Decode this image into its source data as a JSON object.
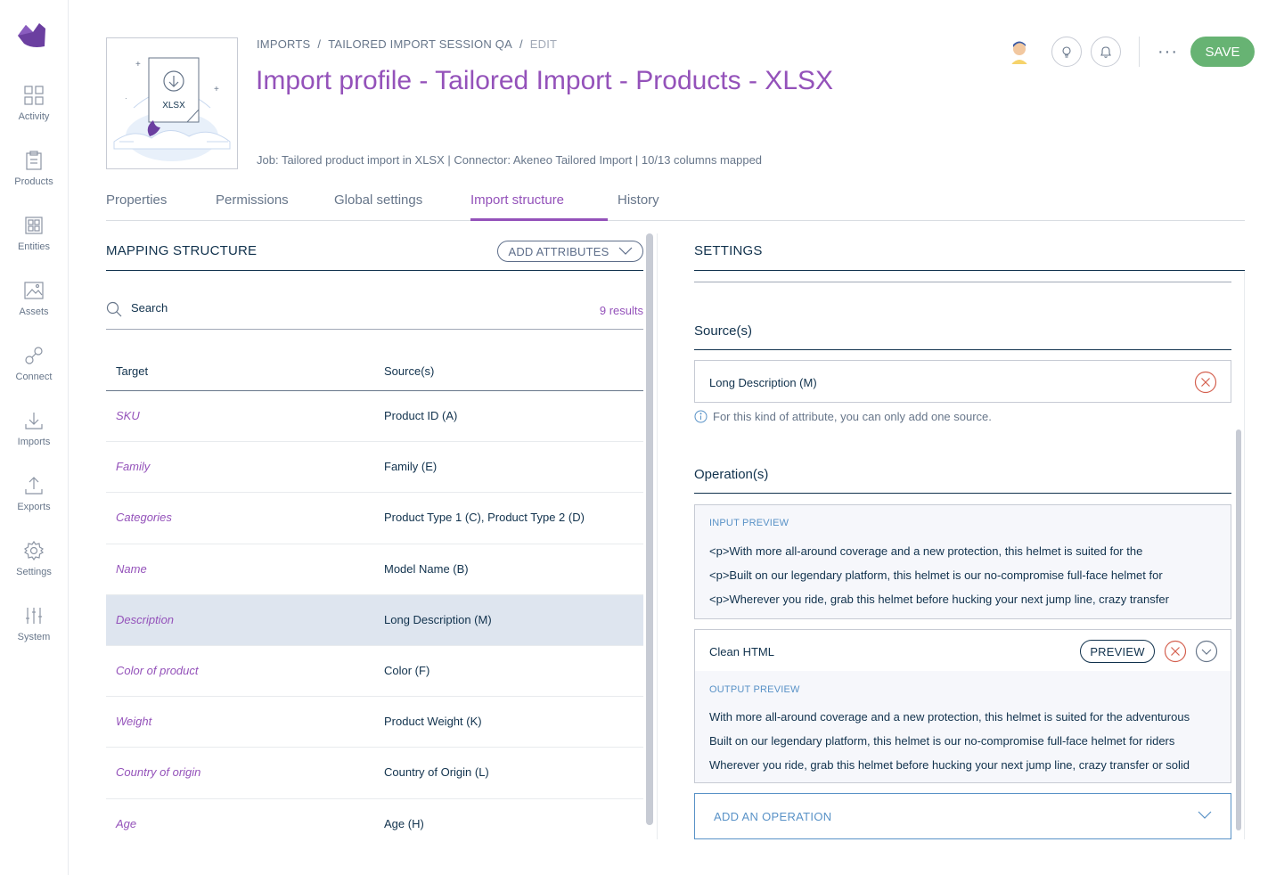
{
  "sidebar": {
    "items": [
      {
        "label": "Activity",
        "icon": "activity-icon"
      },
      {
        "label": "Products",
        "icon": "products-icon"
      },
      {
        "label": "Entities",
        "icon": "entities-icon"
      },
      {
        "label": "Assets",
        "icon": "assets-icon"
      },
      {
        "label": "Connect",
        "icon": "connect-icon"
      },
      {
        "label": "Imports",
        "icon": "imports-icon"
      },
      {
        "label": "Exports",
        "icon": "exports-icon"
      },
      {
        "label": "Settings",
        "icon": "settings-icon"
      },
      {
        "label": "System",
        "icon": "system-icon"
      }
    ]
  },
  "header": {
    "thumbnail_label": "XLSX",
    "breadcrumb": [
      "IMPORTS",
      "TAILORED IMPORT SESSION QA",
      "EDIT"
    ],
    "title": "Import profile - Tailored Import - Products - XLSX",
    "subtitle": "Job: Tailored product import in XLSX | Connector: Akeneo Tailored Import | 10/13 columns mapped",
    "more_label": "···",
    "save_label": "SAVE"
  },
  "tabs": [
    {
      "label": "Properties",
      "active": false
    },
    {
      "label": "Permissions",
      "active": false
    },
    {
      "label": "Global settings",
      "active": false
    },
    {
      "label": "Import structure",
      "active": true
    },
    {
      "label": "History",
      "active": false
    }
  ],
  "mapping": {
    "title": "MAPPING STRUCTURE",
    "add_attributes_label": "ADD ATTRIBUTES",
    "search_placeholder": "Search",
    "results": "9 results",
    "columns": {
      "target": "Target",
      "sources": "Source(s)"
    },
    "rows": [
      {
        "target": "SKU",
        "source": "Product ID (A)",
        "selected": false
      },
      {
        "target": "Family",
        "source": "Family (E)",
        "selected": false
      },
      {
        "target": "Categories",
        "source": "Product Type 1 (C), Product Type 2 (D)",
        "selected": false
      },
      {
        "target": "Name",
        "source": "Model Name (B)",
        "selected": false
      },
      {
        "target": "Description",
        "source": "Long Description (M)",
        "selected": true
      },
      {
        "target": "Color of product",
        "source": "Color (F)",
        "selected": false
      },
      {
        "target": "Weight",
        "source": "Product Weight (K)",
        "selected": false
      },
      {
        "target": "Country of origin",
        "source": "Country of Origin (L)",
        "selected": false
      },
      {
        "target": "Age",
        "source": "Age (H)",
        "selected": false
      }
    ]
  },
  "settings": {
    "title": "SETTINGS",
    "sources_title": "Source(s)",
    "source_value": "Long Description (M)",
    "helper": "For this kind of attribute, you can only add one source.",
    "operations_title": "Operation(s)",
    "input_preview": {
      "title": "INPUT PREVIEW",
      "lines": [
        "<p>With more all-around coverage and a new protection, this helmet is suited for the",
        "<p>Built on our legendary platform, this helmet is our no-compromise full-face helmet for",
        "<p>Wherever you ride, grab this helmet before hucking your next jump line, crazy transfer"
      ]
    },
    "operation": {
      "label": "Clean HTML",
      "preview_label": "PREVIEW"
    },
    "output_preview": {
      "title": "OUTPUT PREVIEW",
      "lines": [
        "With more all-around coverage and a new protection, this helmet is suited for the adventurous",
        "Built on our legendary platform, this helmet is our no-compromise full-face helmet for riders",
        "Wherever you ride, grab this helmet before hucking your next jump line, crazy transfer or solid"
      ]
    },
    "add_operation_label": "ADD AN OPERATION"
  },
  "colors": {
    "brand": "#9452ba",
    "save": "#67b373",
    "danger": "#d4604f",
    "link": "#5992c7"
  }
}
